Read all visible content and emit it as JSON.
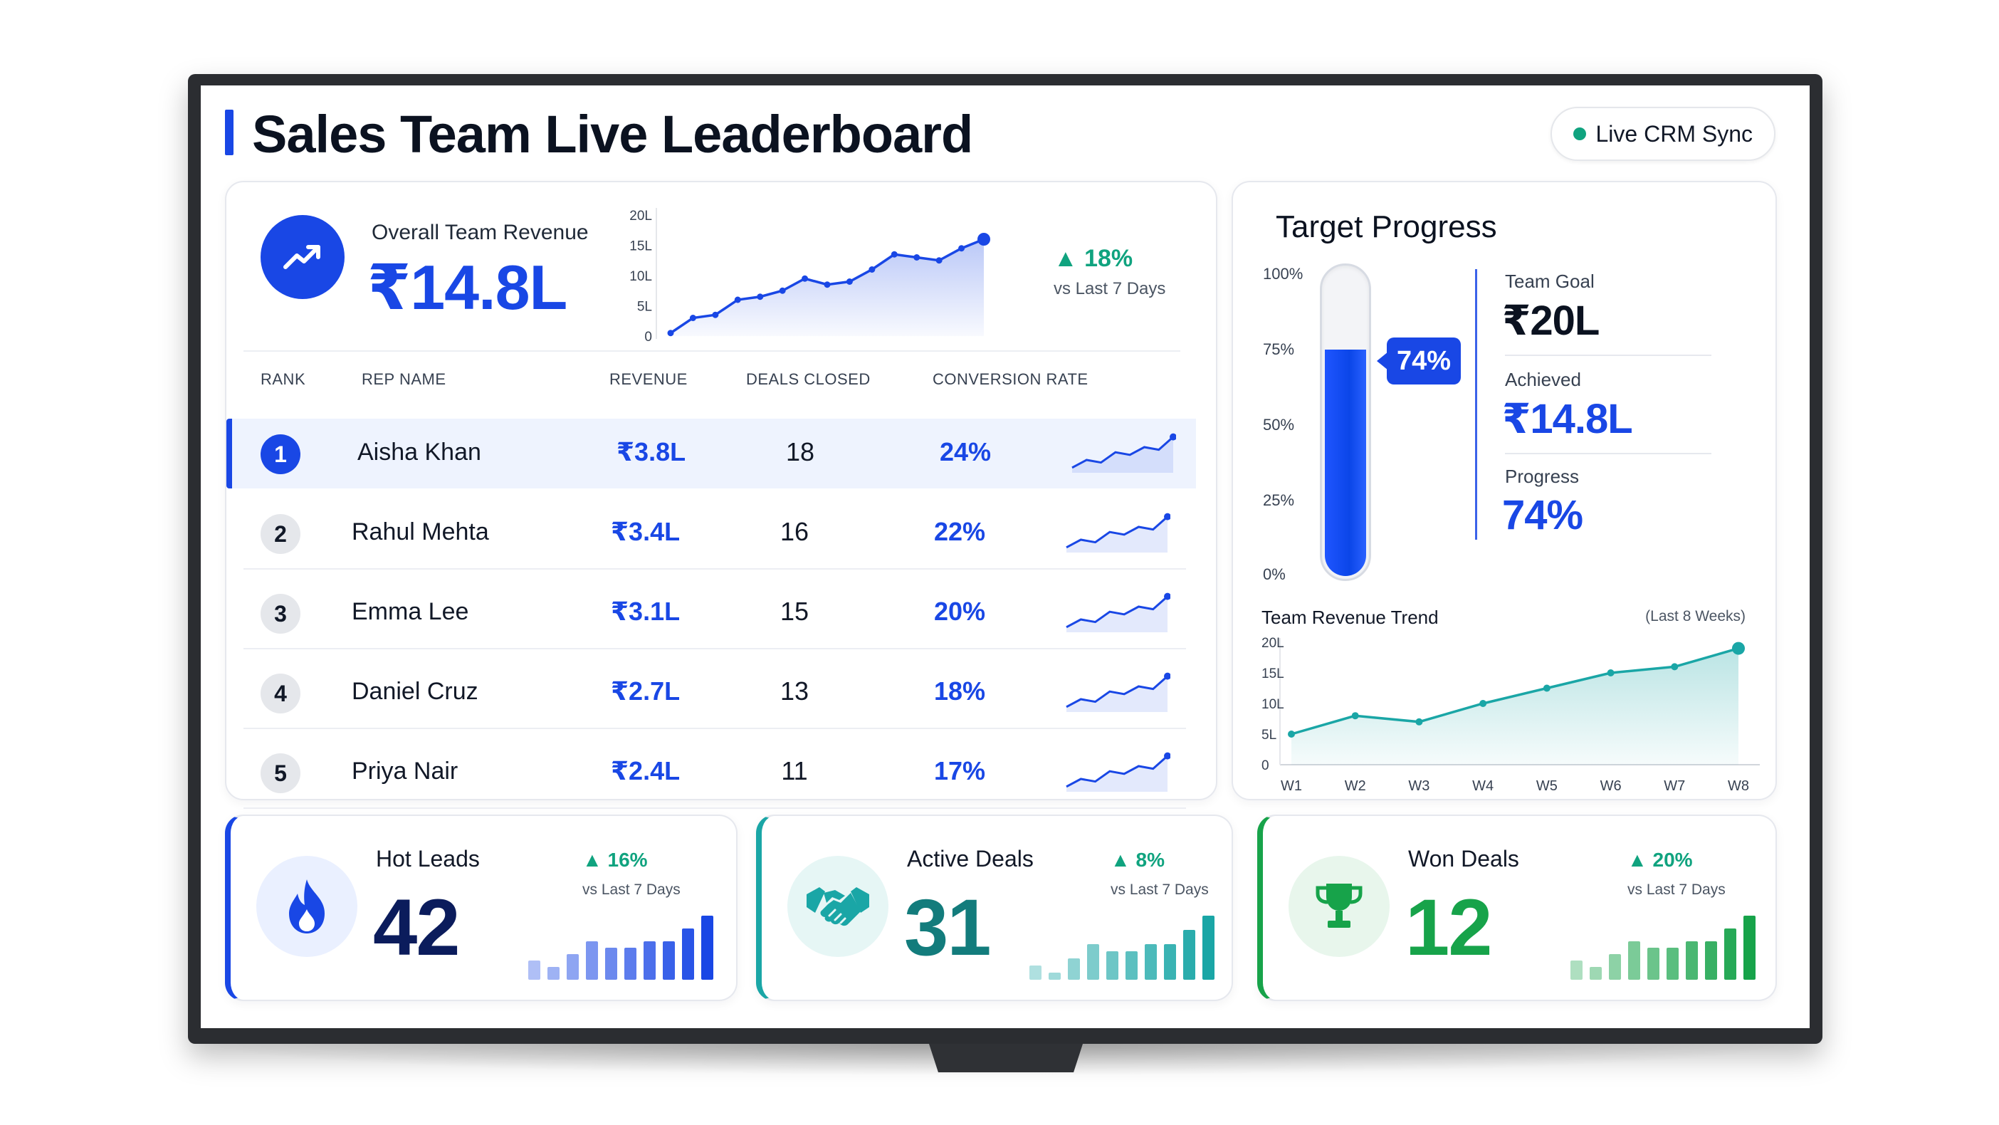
{
  "header": {
    "title": "Sales Team Live Leaderboard",
    "sync_label": "Live CRM Sync",
    "accent": "#1947e5",
    "sync_color": "#10a37f"
  },
  "overall": {
    "label": "Overall Team Revenue",
    "value": "₹14.8L",
    "delta": "18%",
    "delta_sub": "vs Last 7 Days",
    "icon": "trending-up-icon",
    "chart_data": {
      "type": "area",
      "y_ticks": [
        "20L",
        "15L",
        "10L",
        "5L",
        "0"
      ],
      "ylim": [
        0,
        20
      ],
      "values": [
        0.5,
        3,
        3.5,
        6,
        6.5,
        7.5,
        9.5,
        8.5,
        9,
        11,
        13.5,
        13,
        12.5,
        14.5,
        16
      ]
    }
  },
  "table": {
    "headers": [
      "RANK",
      "REP NAME",
      "REVENUE",
      "DEALS CLOSED",
      "CONVERSION RATE"
    ],
    "rows": [
      {
        "rank": "1",
        "name": "Aisha Khan",
        "revenue": "₹3.8L",
        "deals": "18",
        "conversion": "24%",
        "trend": [
          1,
          2.5,
          2,
          4,
          3.5,
          5,
          4.5,
          7
        ]
      },
      {
        "rank": "2",
        "name": "Rahul Mehta",
        "revenue": "₹3.4L",
        "deals": "16",
        "conversion": "22%",
        "trend": [
          1,
          2.5,
          2,
          4,
          3.5,
          5,
          4.5,
          7
        ]
      },
      {
        "rank": "3",
        "name": "Emma Lee",
        "revenue": "₹3.1L",
        "deals": "15",
        "conversion": "20%",
        "trend": [
          1,
          2.5,
          2,
          4,
          3.5,
          5,
          4.5,
          7
        ]
      },
      {
        "rank": "4",
        "name": "Daniel Cruz",
        "revenue": "₹2.7L",
        "deals": "13",
        "conversion": "18%",
        "trend": [
          1,
          2.5,
          2,
          4,
          3.5,
          5,
          4.5,
          7
        ]
      },
      {
        "rank": "5",
        "name": "Priya Nair",
        "revenue": "₹2.4L",
        "deals": "11",
        "conversion": "17%",
        "trend": [
          1,
          2.5,
          2,
          4,
          3.5,
          5,
          4.5,
          7
        ]
      }
    ]
  },
  "target": {
    "title": "Target Progress",
    "ticks": [
      "100%",
      "75%",
      "50%",
      "25%",
      "0%"
    ],
    "progress_fraction": 0.74,
    "tag": "74%",
    "goal_label": "Team Goal",
    "goal_value": "₹20L",
    "achieved_label": "Achieved",
    "achieved_value": "₹14.8L",
    "progress_label": "Progress",
    "progress_value": "74%"
  },
  "trend": {
    "title": "Team Revenue Trend",
    "subtitle": "(Last 8 Weeks)",
    "chart_data": {
      "type": "area",
      "y_ticks": [
        "20L",
        "15L",
        "10L",
        "5L",
        "0"
      ],
      "ylim": [
        0,
        20
      ],
      "categories": [
        "W1",
        "W2",
        "W3",
        "W4",
        "W5",
        "W6",
        "W7",
        "W8"
      ],
      "values": [
        5,
        8,
        7,
        10,
        12.5,
        15,
        16,
        19
      ],
      "color": "#1aa6a6"
    }
  },
  "kpis": [
    {
      "key": "hot",
      "label": "Hot Leads",
      "value": "42",
      "delta": "16%",
      "delta_sub": "vs Last 7 Days",
      "icon": "flame-icon",
      "color": "#1947e5",
      "bars": [
        3,
        2,
        4,
        6,
        5,
        5,
        6,
        6,
        8,
        10
      ]
    },
    {
      "key": "active",
      "label": "Active Deals",
      "value": "31",
      "delta": "8%",
      "delta_sub": "vs Last 7 Days",
      "icon": "handshake-icon",
      "color": "#1aa6a6",
      "bars": [
        2,
        1,
        3,
        5,
        4,
        4,
        5,
        5,
        7,
        9
      ]
    },
    {
      "key": "won",
      "label": "Won Deals",
      "value": "12",
      "delta": "20%",
      "delta_sub": "vs Last 7 Days",
      "icon": "trophy-icon",
      "color": "#17a34a",
      "bars": [
        3,
        2,
        4,
        6,
        5,
        5,
        6,
        6,
        8,
        10
      ]
    }
  ]
}
